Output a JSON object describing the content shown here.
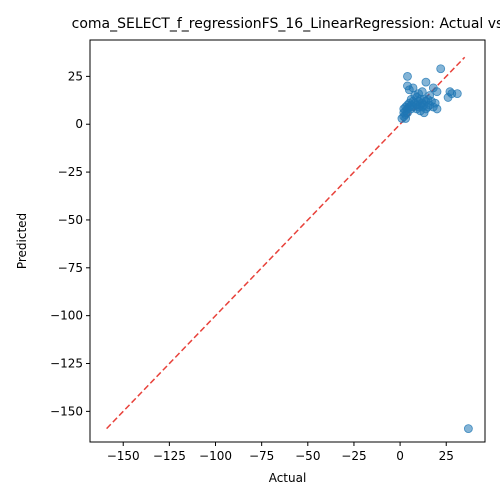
{
  "chart_data": {
    "type": "scatter",
    "title": "coma_SELECT_f_regressionFS_16_LinearRegression: Actual vs",
    "xlabel": "Actual",
    "ylabel": "Predicted",
    "xlim": [
      -168,
      46
    ],
    "ylim": [
      -166,
      44
    ],
    "xticks": [
      -150,
      -125,
      -100,
      -75,
      -50,
      -25,
      0,
      25
    ],
    "xtick_labels": [
      "−150",
      "−125",
      "−100",
      "−75",
      "−50",
      "−25",
      "0",
      "25"
    ],
    "yticks": [
      -150,
      -125,
      -100,
      -75,
      -50,
      -25,
      0,
      25
    ],
    "ytick_labels": [
      "−150",
      "−125",
      "−100",
      "−75",
      "−50",
      "−25",
      "0",
      "25"
    ],
    "grid": false,
    "point_color": "#1f77b4",
    "reference_line": {
      "style": "dashed",
      "color": "#e8413a",
      "from": [
        -159,
        -159
      ],
      "to": [
        35,
        35
      ]
    },
    "points": [
      [
        37,
        -159
      ],
      [
        22,
        29
      ],
      [
        4,
        25
      ],
      [
        14,
        22
      ],
      [
        4,
        20
      ],
      [
        7,
        19
      ],
      [
        18,
        19
      ],
      [
        5,
        18
      ],
      [
        27,
        17
      ],
      [
        28,
        16
      ],
      [
        31,
        16
      ],
      [
        12,
        17
      ],
      [
        20,
        17
      ],
      [
        10,
        16
      ],
      [
        16,
        15
      ],
      [
        26,
        14
      ],
      [
        8,
        15
      ],
      [
        9,
        14
      ],
      [
        11,
        13
      ],
      [
        13,
        13
      ],
      [
        15,
        13
      ],
      [
        6,
        13
      ],
      [
        7,
        12
      ],
      [
        10,
        12
      ],
      [
        14,
        12
      ],
      [
        17,
        12
      ],
      [
        5,
        11
      ],
      [
        8,
        11
      ],
      [
        12,
        11
      ],
      [
        19,
        11
      ],
      [
        4,
        10
      ],
      [
        6,
        10
      ],
      [
        9,
        10
      ],
      [
        11,
        10
      ],
      [
        13,
        10
      ],
      [
        16,
        10
      ],
      [
        3,
        9
      ],
      [
        5,
        9
      ],
      [
        7,
        9
      ],
      [
        10,
        9
      ],
      [
        12,
        9
      ],
      [
        15,
        9
      ],
      [
        18,
        9
      ],
      [
        2,
        8
      ],
      [
        4,
        8
      ],
      [
        6,
        8
      ],
      [
        9,
        8
      ],
      [
        14,
        8
      ],
      [
        20,
        8
      ],
      [
        3,
        7
      ],
      [
        11,
        7
      ],
      [
        2,
        6
      ],
      [
        4,
        6
      ],
      [
        13,
        6
      ],
      [
        3,
        5
      ],
      [
        2,
        4
      ],
      [
        1,
        3
      ],
      [
        3,
        3
      ]
    ]
  }
}
